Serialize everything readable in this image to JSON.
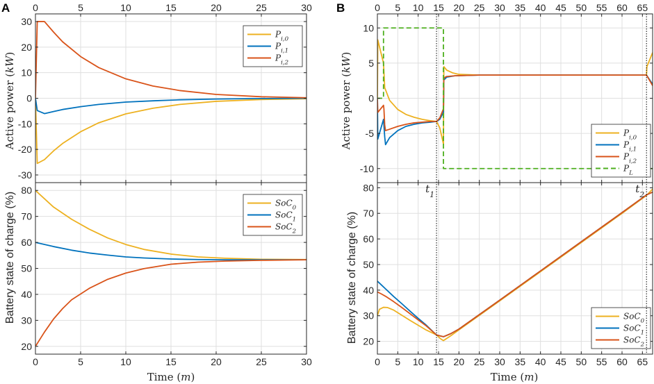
{
  "panels": {
    "A": {
      "letter": "A",
      "xlabel": "Time (m)",
      "xticks": [
        0,
        5,
        10,
        15,
        20,
        25,
        30
      ],
      "top_ylabel": "Active power (kW)",
      "bottom_ylabel": "Battery state of charge (%)",
      "top_yticks": [
        -30,
        -20,
        -10,
        0,
        10,
        20,
        30
      ],
      "bottom_yticks": [
        20,
        30,
        40,
        50,
        60,
        70,
        80
      ]
    },
    "B": {
      "letter": "B",
      "xlabel": "Time (m)",
      "xticks": [
        0,
        5,
        10,
        15,
        20,
        25,
        30,
        35,
        40,
        45,
        50,
        55,
        60,
        65
      ],
      "top_ylabel": "Active power (kW)",
      "bottom_ylabel": "Battery state of charge (%)",
      "top_yticks": [
        -10,
        -5,
        0,
        5,
        10
      ],
      "bottom_yticks": [
        20,
        30,
        40,
        50,
        60,
        70,
        80
      ],
      "t1_label": "t1",
      "t2_label": "t2"
    }
  },
  "colors": {
    "s0": "#EDB120",
    "s1": "#0072BD",
    "s2": "#D95319",
    "load": "#4DAF1E"
  },
  "chart_data": [
    {
      "id": "A-top",
      "type": "line",
      "xlim": [
        0,
        30
      ],
      "ylim": [
        -33,
        33
      ],
      "xlabel": "Time (m)",
      "ylabel": "Active power (kW)",
      "legend": "top-right",
      "grid": true,
      "series": [
        {
          "name": "P_{i,0}",
          "color": "#EDB120",
          "x": [
            0,
            0.2,
            1,
            2,
            3,
            5,
            7,
            10,
            13,
            16,
            20,
            25,
            30
          ],
          "y": [
            0,
            -25.5,
            -24,
            -20.6,
            -17.7,
            -13.1,
            -9.6,
            -6.1,
            -3.9,
            -2.4,
            -1.2,
            -0.5,
            -0.2
          ]
        },
        {
          "name": "P_{i,1}",
          "color": "#0072BD",
          "x": [
            0,
            0.2,
            1,
            2,
            3,
            5,
            7,
            10,
            13,
            16,
            20,
            25,
            30
          ],
          "y": [
            0,
            -4.8,
            -6,
            -5.2,
            -4.4,
            -3.3,
            -2.4,
            -1.5,
            -1.0,
            -0.6,
            -0.3,
            -0.1,
            0
          ]
        },
        {
          "name": "P_{i,2}",
          "color": "#D95319",
          "x": [
            0,
            0.2,
            1,
            2,
            3,
            5,
            7,
            10,
            13,
            16,
            20,
            25,
            30
          ],
          "y": [
            0,
            30,
            30,
            25.9,
            22.1,
            16.3,
            12.0,
            7.6,
            4.8,
            3.0,
            1.5,
            0.6,
            0.2
          ]
        }
      ]
    },
    {
      "id": "A-bottom",
      "type": "line",
      "xlim": [
        0,
        30
      ],
      "ylim": [
        17,
        83
      ],
      "xlabel": "Time (m)",
      "ylabel": "Battery state of charge (%)",
      "legend": "top-right",
      "grid": true,
      "series": [
        {
          "name": "SoC_0",
          "color": "#EDB120",
          "x": [
            0,
            2,
            4,
            6,
            8,
            10,
            12,
            15,
            18,
            21,
            25,
            30
          ],
          "y": [
            80,
            73.6,
            68.9,
            65.0,
            61.7,
            59.2,
            57.3,
            55.5,
            54.4,
            53.9,
            53.5,
            53.4
          ]
        },
        {
          "name": "SoC_1",
          "color": "#0072BD",
          "x": [
            0,
            2,
            4,
            6,
            8,
            10,
            12,
            15,
            18,
            21,
            25,
            30
          ],
          "y": [
            60,
            58.4,
            57.0,
            55.9,
            55.1,
            54.4,
            54.0,
            53.6,
            53.4,
            53.3,
            53.3,
            53.3
          ]
        },
        {
          "name": "SoC_2",
          "color": "#D95319",
          "x": [
            0,
            1,
            2,
            3,
            4,
            6,
            8,
            10,
            12,
            15,
            18,
            21,
            25,
            30
          ],
          "y": [
            20,
            25.5,
            30.5,
            34.5,
            37.9,
            42.4,
            45.8,
            48.2,
            49.9,
            51.6,
            52.4,
            52.8,
            53.1,
            53.3
          ]
        }
      ]
    },
    {
      "id": "B-top",
      "type": "line",
      "xlim": [
        0,
        67.5
      ],
      "ylim": [
        -12,
        12
      ],
      "xlabel": "Time (m)",
      "ylabel": "Active power (kW)",
      "legend": "bottom-right",
      "grid": true,
      "series": [
        {
          "name": "P_{i,0}",
          "color": "#EDB120",
          "x": [
            0,
            0.1,
            1.5,
            1.8,
            3,
            5,
            7,
            9,
            11,
            13,
            14.5,
            15.3,
            16.2,
            16.3,
            17,
            18.5,
            20,
            25,
            30,
            66,
            66.1,
            67.5
          ],
          "y": [
            0,
            8.3,
            5.0,
            1.5,
            -0.3,
            -1.6,
            -2.3,
            -2.7,
            -3.0,
            -3.2,
            -3.3,
            -4.2,
            -6.5,
            4.5,
            4.0,
            3.6,
            3.4,
            3.3,
            3.3,
            3.3,
            4.5,
            6.5
          ]
        },
        {
          "name": "P_{i,1}",
          "color": "#0072BD",
          "x": [
            0,
            0.1,
            1.5,
            1.8,
            2.0,
            3,
            5,
            7,
            9,
            11,
            13,
            14.5,
            15.3,
            16.2,
            16.3,
            17,
            19,
            25,
            66,
            67.5
          ],
          "y": [
            0,
            -5.8,
            -3.0,
            -5.5,
            -6.6,
            -5.6,
            -4.6,
            -4.0,
            -3.7,
            -3.5,
            -3.4,
            -3.3,
            -3.0,
            -2.0,
            2.6,
            3.0,
            3.2,
            3.3,
            3.3,
            2.0
          ]
        },
        {
          "name": "P_{i,2}",
          "color": "#D95319",
          "x": [
            0,
            0.1,
            1.5,
            1.6,
            1.8,
            2.0,
            3,
            5,
            7,
            9,
            11,
            13,
            14.5,
            15.3,
            16.2,
            16.3,
            17,
            19,
            25,
            66,
            67.5
          ],
          "y": [
            0,
            -2.0,
            -1.0,
            -1.5,
            -3.8,
            -4.6,
            -4.4,
            -4.0,
            -3.7,
            -3.5,
            -3.4,
            -3.3,
            -3.3,
            -2.8,
            -1.5,
            2.9,
            3.1,
            3.2,
            3.3,
            3.3,
            1.8
          ]
        },
        {
          "name": "P_L",
          "color": "#4DAF1E",
          "dashed": true,
          "x": [
            0,
            1.5,
            1.5,
            16.2,
            16.2,
            67.5
          ],
          "y": [
            0,
            0,
            10,
            10,
            -10,
            -10
          ]
        }
      ]
    },
    {
      "id": "B-bottom",
      "type": "line",
      "xlim": [
        0,
        67.5
      ],
      "ylim": [
        15,
        82
      ],
      "xlabel": "Time (m)",
      "ylabel": "Battery state of charge (%)",
      "legend": "bottom-right",
      "grid": true,
      "events": [
        {
          "label": "t1",
          "x": 14.5
        },
        {
          "label": "t2",
          "x": 66
        }
      ],
      "series": [
        {
          "name": "SoC_0",
          "color": "#EDB120",
          "x": [
            0,
            0.5,
            1.5,
            2.5,
            4,
            6,
            8,
            10,
            12,
            14.5,
            15.5,
            16.2,
            18,
            20,
            30,
            40,
            50,
            60,
            66,
            67.5
          ],
          "y": [
            30,
            32.5,
            33.3,
            33.2,
            32.2,
            30.2,
            28.2,
            26.3,
            24.4,
            22.5,
            21.0,
            20.3,
            22.2,
            24.5,
            35.8,
            47.2,
            58.6,
            70.0,
            77.0,
            79.5
          ]
        },
        {
          "name": "SoC_1",
          "color": "#0072BD",
          "x": [
            0,
            1,
            2,
            4,
            6,
            8,
            10,
            12,
            14.5,
            16.2,
            18,
            20,
            30,
            40,
            50,
            60,
            66,
            67.5
          ],
          "y": [
            43.5,
            42.0,
            40.5,
            37.5,
            34.7,
            31.8,
            29.0,
            26.3,
            22.5,
            21.8,
            23.0,
            24.8,
            36.1,
            47.5,
            58.9,
            70.3,
            77.2,
            78.3
          ]
        },
        {
          "name": "SoC_2",
          "color": "#D95319",
          "x": [
            0,
            1,
            2,
            4,
            6,
            8,
            10,
            12,
            14.5,
            16.2,
            18,
            20,
            30,
            40,
            50,
            60,
            66,
            67.5
          ],
          "y": [
            39.3,
            38.5,
            37.6,
            35.5,
            33.2,
            30.8,
            28.4,
            26.0,
            22.5,
            21.8,
            23.0,
            24.8,
            36.1,
            47.5,
            58.9,
            70.3,
            77.2,
            78.3
          ]
        }
      ]
    }
  ]
}
